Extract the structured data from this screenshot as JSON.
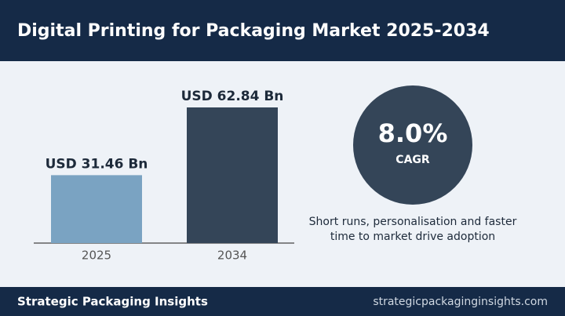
{
  "chart_data": {
    "type": "bar",
    "title": "Digital Printing for Packaging Market 2025-2034",
    "categories": [
      "2025",
      "2034"
    ],
    "values": [
      31.46,
      62.84
    ],
    "value_labels": [
      "USD 31.46 Bn",
      "USD 62.84 Bn"
    ],
    "colors": [
      "#7aa3c2",
      "#344558"
    ]
  },
  "cagr": {
    "values": [
      8.0
    ],
    "value_labels": [
      "8.0%"
    ],
    "label": "CAGR"
  },
  "note": {
    "lines": [
      "Short runs, personalisation and faster",
      "time to market drive adoption"
    ]
  },
  "footer": {
    "brand": "Strategic Packaging Insights",
    "url": "strategicpackaginginsights.com"
  }
}
